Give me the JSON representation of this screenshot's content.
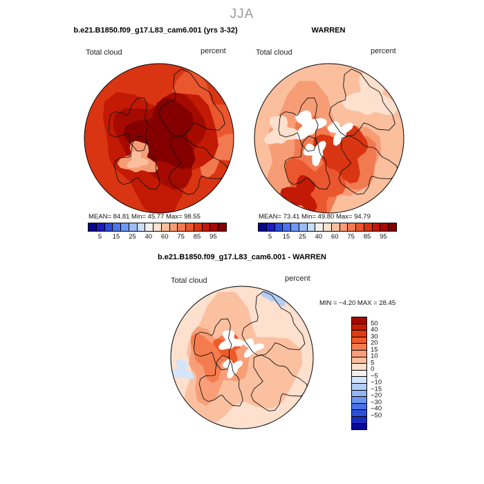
{
  "season": "JJA",
  "panels": [
    {
      "title": "b.e21.B1850.f09_g17.L83_cam6.001 (yrs 3-32)",
      "variable": "Total cloud",
      "units": "percent",
      "stats": "MEAN=  84.81   Min=  45.77   Max=  98.55",
      "scheme": "model"
    },
    {
      "title": "WARREN",
      "variable": "Total cloud",
      "units": "percent",
      "stats": "MEAN=  73.41   Min=  49.80   Max=  94.79",
      "scheme": "obs"
    }
  ],
  "abs_colorbar": {
    "colors": [
      "#08088a",
      "#1c1cc0",
      "#2e4bdc",
      "#4a74ee",
      "#7098f4",
      "#9ebcf8",
      "#c9dcfb",
      "#f3f0ec",
      "#fde0cd",
      "#fbbf9e",
      "#f79d76",
      "#f27a50",
      "#ea562e",
      "#da3512",
      "#c21a04",
      "#a50a00",
      "#840000"
    ],
    "labels": [
      "5",
      "15",
      "25",
      "40",
      "60",
      "75",
      "85",
      "95"
    ]
  },
  "diff_panel": {
    "title": "b.e21.B1850.f09_g17.L83_cam6.001 - WARREN",
    "variable": "Total cloud",
    "units": "percent",
    "stats": "MIN =  −4.20  MAX =  28.45"
  },
  "diff_colorbar": {
    "colors": [
      "#a50a00",
      "#c81c04",
      "#e03a12",
      "#ef5a2a",
      "#f57c4e",
      "#f89e78",
      "#fbc0a0",
      "#fde0cd",
      "#f3f0ec",
      "#d4e4fa",
      "#b4cff7",
      "#92b6f3",
      "#6c96ee",
      "#4a72e6",
      "#2c4fd8",
      "#1a2cc0",
      "#0a0a98"
    ],
    "labels": [
      "50",
      "40",
      "30",
      "20",
      "15",
      "10",
      "5",
      "0",
      "−5",
      "−10",
      "−15",
      "−20",
      "−30",
      "−40",
      "−50"
    ]
  }
}
